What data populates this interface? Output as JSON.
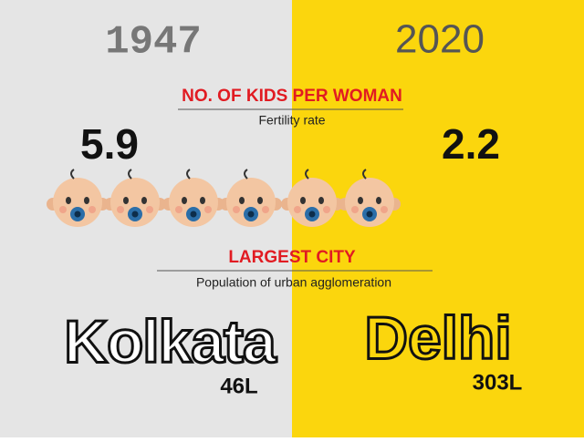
{
  "header": {
    "left_year": "1947",
    "right_year": "2020"
  },
  "fertility": {
    "title": "NO. OF KIDS PER WOMAN",
    "subtitle": "Fertility rate",
    "left_value": 5.9,
    "right_value": 2.2
  },
  "city": {
    "title": "LARGEST CITY",
    "subtitle": "Population of urban agglomeration",
    "left_name": "Kolkata",
    "left_population": "46L",
    "right_name": "Delhi",
    "right_population": "303L"
  }
}
